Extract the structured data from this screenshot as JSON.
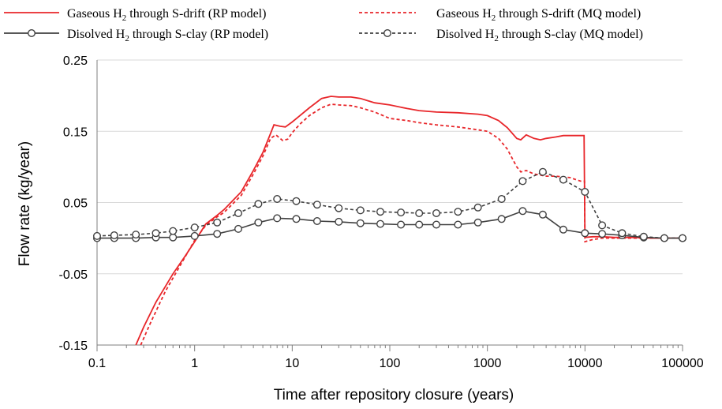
{
  "chart_data": {
    "type": "line",
    "title": "",
    "xlabel": "Time after repository closure (years)",
    "ylabel": "Flow rate (kg/year)",
    "x_scale": "log",
    "xlim": [
      0.1,
      100000
    ],
    "ylim": [
      -0.15,
      0.25
    ],
    "x_ticks": [
      0.1,
      1,
      10,
      100,
      1000,
      10000,
      100000
    ],
    "x_tick_labels": [
      "0.1",
      "1",
      "10",
      "100",
      "1000",
      "10000",
      "100000"
    ],
    "y_ticks": [
      -0.15,
      -0.05,
      0.05,
      0.15,
      0.25
    ],
    "y_tick_labels": [
      "-0.15",
      "-0.05",
      "0.05",
      "0.15",
      "0.25"
    ],
    "grid": "horizontal",
    "legend_position": "top",
    "series": [
      {
        "name_parts": [
          "Gaseous H",
          "2",
          " through S-drift (RP model)"
        ],
        "color": "#e8262a",
        "dash": "solid",
        "marker": "none",
        "points": [
          [
            0.25,
            -0.15
          ],
          [
            0.3,
            -0.125
          ],
          [
            0.4,
            -0.09
          ],
          [
            0.6,
            -0.05
          ],
          [
            0.8,
            -0.025
          ],
          [
            1,
            -0.005
          ],
          [
            1.3,
            0.02
          ],
          [
            1.7,
            0.032
          ],
          [
            2,
            0.04
          ],
          [
            3,
            0.065
          ],
          [
            4,
            0.095
          ],
          [
            5,
            0.12
          ],
          [
            6,
            0.147
          ],
          [
            6.5,
            0.159
          ],
          [
            7.5,
            0.157
          ],
          [
            8.5,
            0.156
          ],
          [
            10,
            0.163
          ],
          [
            12,
            0.172
          ],
          [
            15,
            0.183
          ],
          [
            20,
            0.196
          ],
          [
            25,
            0.199
          ],
          [
            30,
            0.198
          ],
          [
            40,
            0.198
          ],
          [
            50,
            0.196
          ],
          [
            70,
            0.19
          ],
          [
            100,
            0.187
          ],
          [
            150,
            0.182
          ],
          [
            200,
            0.179
          ],
          [
            300,
            0.177
          ],
          [
            500,
            0.176
          ],
          [
            800,
            0.174
          ],
          [
            1000,
            0.172
          ],
          [
            1300,
            0.165
          ],
          [
            1600,
            0.155
          ],
          [
            2000,
            0.14
          ],
          [
            2200,
            0.138
          ],
          [
            2500,
            0.145
          ],
          [
            3000,
            0.14
          ],
          [
            3500,
            0.138
          ],
          [
            4000,
            0.14
          ],
          [
            5000,
            0.142
          ],
          [
            6000,
            0.144
          ],
          [
            8000,
            0.144
          ],
          [
            9800,
            0.144
          ],
          [
            10000,
            0.001
          ],
          [
            12000,
            0.002
          ],
          [
            15000,
            0.002
          ],
          [
            20000,
            0.001
          ],
          [
            30000,
            0.001
          ],
          [
            50000,
            0.0
          ],
          [
            100000,
            0.0
          ]
        ]
      },
      {
        "name_parts": [
          "Gaseous H",
          "2",
          " through S-drift (MQ model)"
        ],
        "color": "#e8262a",
        "dash": "dashed",
        "marker": "none",
        "points": [
          [
            0.28,
            -0.15
          ],
          [
            0.35,
            -0.12
          ],
          [
            0.5,
            -0.075
          ],
          [
            0.7,
            -0.04
          ],
          [
            1,
            -0.003
          ],
          [
            1.3,
            0.018
          ],
          [
            1.7,
            0.03
          ],
          [
            2,
            0.036
          ],
          [
            3,
            0.06
          ],
          [
            4,
            0.09
          ],
          [
            5,
            0.115
          ],
          [
            6,
            0.14
          ],
          [
            6.8,
            0.145
          ],
          [
            8,
            0.137
          ],
          [
            9,
            0.139
          ],
          [
            10,
            0.148
          ],
          [
            12,
            0.16
          ],
          [
            15,
            0.172
          ],
          [
            20,
            0.183
          ],
          [
            25,
            0.188
          ],
          [
            30,
            0.187
          ],
          [
            40,
            0.186
          ],
          [
            50,
            0.183
          ],
          [
            70,
            0.177
          ],
          [
            100,
            0.168
          ],
          [
            150,
            0.165
          ],
          [
            200,
            0.162
          ],
          [
            300,
            0.159
          ],
          [
            500,
            0.156
          ],
          [
            800,
            0.152
          ],
          [
            1000,
            0.15
          ],
          [
            1300,
            0.14
          ],
          [
            1600,
            0.125
          ],
          [
            2000,
            0.1
          ],
          [
            2200,
            0.093
          ],
          [
            2500,
            0.095
          ],
          [
            3000,
            0.09
          ],
          [
            4000,
            0.087
          ],
          [
            5000,
            0.087
          ],
          [
            7000,
            0.085
          ],
          [
            9000,
            0.08
          ],
          [
            9900,
            0.08
          ],
          [
            10000,
            -0.005
          ],
          [
            12000,
            -0.002
          ],
          [
            15000,
            0.0
          ],
          [
            30000,
            0.0
          ],
          [
            100000,
            0.0
          ]
        ]
      },
      {
        "name_parts": [
          "Disolved H",
          "2",
          " through S-clay (RP model)"
        ],
        "color": "#404040",
        "dash": "solid",
        "marker": "circle",
        "points": [
          [
            0.1,
            0.0
          ],
          [
            0.15,
            0.0
          ],
          [
            0.25,
            0.0
          ],
          [
            0.4,
            0.001
          ],
          [
            0.6,
            0.001
          ],
          [
            1,
            0.003
          ],
          [
            1.7,
            0.006
          ],
          [
            2.8,
            0.013
          ],
          [
            4.5,
            0.022
          ],
          [
            7,
            0.028
          ],
          [
            11,
            0.027
          ],
          [
            18,
            0.024
          ],
          [
            30,
            0.023
          ],
          [
            50,
            0.021
          ],
          [
            80,
            0.02
          ],
          [
            130,
            0.019
          ],
          [
            200,
            0.019
          ],
          [
            300,
            0.019
          ],
          [
            500,
            0.019
          ],
          [
            800,
            0.022
          ],
          [
            1400,
            0.027
          ],
          [
            2300,
            0.038
          ],
          [
            3700,
            0.033
          ],
          [
            6000,
            0.012
          ],
          [
            10000,
            0.007
          ],
          [
            15000,
            0.006
          ],
          [
            24000,
            0.004
          ],
          [
            40000,
            0.001
          ],
          [
            65000,
            0.0
          ],
          [
            100000,
            0.0
          ]
        ]
      },
      {
        "name_parts": [
          "Disolved H",
          "2",
          " through S-clay (MQ model)"
        ],
        "color": "#404040",
        "dash": "dashed",
        "marker": "circle",
        "points": [
          [
            0.1,
            0.003
          ],
          [
            0.15,
            0.004
          ],
          [
            0.25,
            0.005
          ],
          [
            0.4,
            0.007
          ],
          [
            0.6,
            0.01
          ],
          [
            1,
            0.015
          ],
          [
            1.7,
            0.022
          ],
          [
            2.8,
            0.035
          ],
          [
            4.5,
            0.048
          ],
          [
            7,
            0.055
          ],
          [
            11,
            0.052
          ],
          [
            18,
            0.047
          ],
          [
            30,
            0.042
          ],
          [
            50,
            0.039
          ],
          [
            80,
            0.037
          ],
          [
            130,
            0.036
          ],
          [
            200,
            0.035
          ],
          [
            300,
            0.035
          ],
          [
            500,
            0.037
          ],
          [
            800,
            0.043
          ],
          [
            1400,
            0.055
          ],
          [
            2300,
            0.08
          ],
          [
            3700,
            0.093
          ],
          [
            6000,
            0.082
          ],
          [
            10000,
            0.065
          ],
          [
            15000,
            0.018
          ],
          [
            24000,
            0.007
          ],
          [
            40000,
            0.002
          ],
          [
            65000,
            0.0
          ],
          [
            100000,
            0.0
          ]
        ]
      }
    ]
  }
}
